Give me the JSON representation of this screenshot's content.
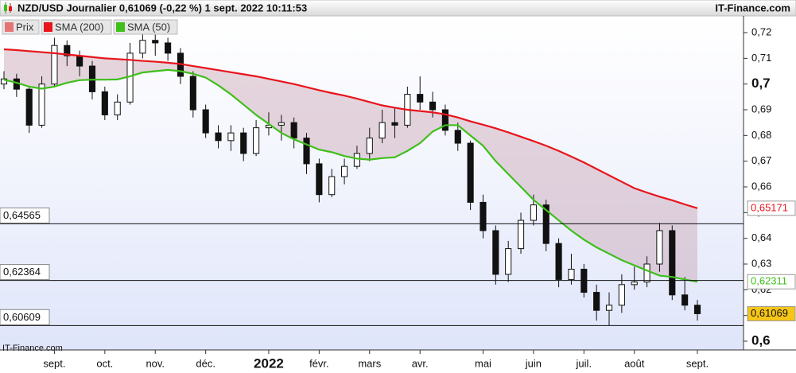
{
  "chart_data": {
    "type": "candlestick",
    "title": "NZD/USD Journalier 0,61069 (-0,22 %) 1 sept. 2022 10:11:53",
    "source": "IT-Finance.com",
    "watermark": "IT-Finance.com",
    "categories": [
      null,
      null,
      null,
      null,
      "sept.",
      null,
      null,
      null,
      "oct.",
      null,
      null,
      null,
      "nov.",
      null,
      null,
      null,
      "déc.",
      null,
      null,
      null,
      null,
      "2022",
      null,
      null,
      null,
      "févr.",
      null,
      null,
      null,
      "mars",
      null,
      null,
      null,
      "avr.",
      null,
      null,
      null,
      null,
      "mai",
      null,
      null,
      null,
      "juin",
      null,
      null,
      null,
      "juil.",
      null,
      null,
      null,
      "août",
      null,
      null,
      null,
      null,
      "sept."
    ],
    "ylim": [
      0.5966,
      0.7265
    ],
    "yticks": [
      {
        "value": 0.6,
        "label": "0,6"
      },
      {
        "value": 0.61,
        "label": "0,61"
      },
      {
        "value": 0.62,
        "label": "0,62"
      },
      {
        "value": 0.63,
        "label": "0,63"
      },
      {
        "value": 0.64,
        "label": "0,64"
      },
      {
        "value": 0.65,
        "label": "0,65"
      },
      {
        "value": 0.66,
        "label": "0,66"
      },
      {
        "value": 0.67,
        "label": "0,67"
      },
      {
        "value": 0.68,
        "label": "0,68"
      },
      {
        "value": 0.69,
        "label": "0,69"
      },
      {
        "value": 0.7,
        "label": "0,7"
      },
      {
        "value": 0.71,
        "label": "0,71"
      },
      {
        "value": 0.72,
        "label": "0,72"
      }
    ],
    "levels": [
      {
        "value": 0.64565,
        "label": "0,64565"
      },
      {
        "value": 0.62364,
        "label": "0,62364"
      },
      {
        "value": 0.60609,
        "label": "0,60609"
      }
    ],
    "series": [
      {
        "name": "Prix",
        "color": "#e57373",
        "end_label": "0,61069",
        "end_color": "#f5c518",
        "open": [
          0.7,
          0.702,
          0.698,
          0.684,
          0.7,
          0.715,
          0.711,
          0.707,
          0.697,
          0.688,
          0.693,
          0.712,
          0.717,
          0.716,
          0.712,
          0.703,
          0.69,
          0.681,
          0.678,
          0.681,
          0.673,
          0.683,
          0.684,
          0.685,
          0.679,
          0.669,
          0.657,
          0.664,
          0.668,
          0.673,
          0.679,
          0.685,
          0.684,
          0.696,
          0.693,
          0.69,
          0.682,
          0.677,
          0.654,
          0.643,
          0.626,
          0.636,
          0.647,
          0.653,
          0.638,
          0.624,
          0.628,
          0.619,
          0.612,
          0.614,
          0.622,
          0.623,
          0.63,
          0.643,
          0.618,
          0.614
        ],
        "high": [
          0.705,
          0.704,
          0.699,
          0.703,
          0.718,
          0.717,
          0.713,
          0.709,
          0.699,
          0.696,
          0.716,
          0.722,
          0.72,
          0.718,
          0.714,
          0.705,
          0.692,
          0.684,
          0.684,
          0.683,
          0.686,
          0.689,
          0.688,
          0.687,
          0.681,
          0.671,
          0.667,
          0.671,
          0.676,
          0.683,
          0.69,
          0.691,
          0.699,
          0.703,
          0.697,
          0.692,
          0.685,
          0.678,
          0.657,
          0.645,
          0.639,
          0.65,
          0.657,
          0.655,
          0.64,
          0.634,
          0.63,
          0.622,
          0.619,
          0.626,
          0.629,
          0.633,
          0.646,
          0.645,
          0.625,
          0.616
        ],
        "low": [
          0.698,
          0.695,
          0.681,
          0.683,
          0.699,
          0.707,
          0.703,
          0.694,
          0.686,
          0.686,
          0.692,
          0.71,
          0.711,
          0.709,
          0.7,
          0.687,
          0.679,
          0.675,
          0.674,
          0.67,
          0.672,
          0.68,
          0.678,
          0.675,
          0.665,
          0.654,
          0.656,
          0.661,
          0.667,
          0.67,
          0.677,
          0.679,
          0.683,
          0.69,
          0.687,
          0.68,
          0.674,
          0.651,
          0.64,
          0.622,
          0.623,
          0.634,
          0.645,
          0.635,
          0.621,
          0.622,
          0.617,
          0.608,
          0.606,
          0.611,
          0.62,
          0.621,
          0.627,
          0.616,
          0.612,
          0.608
        ],
        "close": [
          0.702,
          0.698,
          0.684,
          0.7,
          0.715,
          0.711,
          0.707,
          0.697,
          0.688,
          0.693,
          0.712,
          0.717,
          0.716,
          0.712,
          0.703,
          0.69,
          0.681,
          0.678,
          0.681,
          0.673,
          0.683,
          0.684,
          0.685,
          0.679,
          0.669,
          0.657,
          0.664,
          0.668,
          0.673,
          0.679,
          0.685,
          0.684,
          0.696,
          0.693,
          0.69,
          0.682,
          0.677,
          0.654,
          0.643,
          0.626,
          0.636,
          0.647,
          0.653,
          0.638,
          0.624,
          0.628,
          0.619,
          0.612,
          0.614,
          0.622,
          0.623,
          0.63,
          0.643,
          0.618,
          0.614,
          0.61069
        ]
      },
      {
        "name": "SMA (200)",
        "color": "#e8141c",
        "end_label": "0,65171",
        "end_color": "#ffffff",
        "values": [
          0.7135,
          0.7132,
          0.7128,
          0.7124,
          0.712,
          0.7115,
          0.711,
          0.7105,
          0.71,
          0.7097,
          0.7094,
          0.709,
          0.7087,
          0.7083,
          0.7078,
          0.707,
          0.7062,
          0.7054,
          0.7046,
          0.7038,
          0.703,
          0.702,
          0.701,
          0.7,
          0.6988,
          0.6976,
          0.6965,
          0.6955,
          0.6943,
          0.693,
          0.6917,
          0.6908,
          0.69,
          0.6895,
          0.689,
          0.6882,
          0.687,
          0.6855,
          0.6842,
          0.6828,
          0.6812,
          0.6795,
          0.6778,
          0.676,
          0.674,
          0.6718,
          0.6695,
          0.667,
          0.6645,
          0.662,
          0.6595,
          0.6578,
          0.6562,
          0.6548,
          0.6532,
          0.65171
        ]
      },
      {
        "name": "SMA (50)",
        "color": "#3fbf1a",
        "end_label": "0,62311",
        "end_color": "#ffffff",
        "values": [
          0.7017,
          0.7005,
          0.699,
          0.6982,
          0.699,
          0.7005,
          0.7015,
          0.7017,
          0.7017,
          0.7018,
          0.703,
          0.7045,
          0.705,
          0.7055,
          0.705,
          0.704,
          0.7025,
          0.6995,
          0.696,
          0.692,
          0.688,
          0.6845,
          0.681,
          0.6785,
          0.6765,
          0.6745,
          0.6735,
          0.672,
          0.671,
          0.6706,
          0.6712,
          0.6715,
          0.674,
          0.677,
          0.6815,
          0.684,
          0.684,
          0.68,
          0.676,
          0.67,
          0.665,
          0.66,
          0.655,
          0.651,
          0.647,
          0.643,
          0.6395,
          0.6365,
          0.634,
          0.6315,
          0.6295,
          0.6275,
          0.6255,
          0.625,
          0.624,
          0.62311
        ]
      }
    ]
  }
}
